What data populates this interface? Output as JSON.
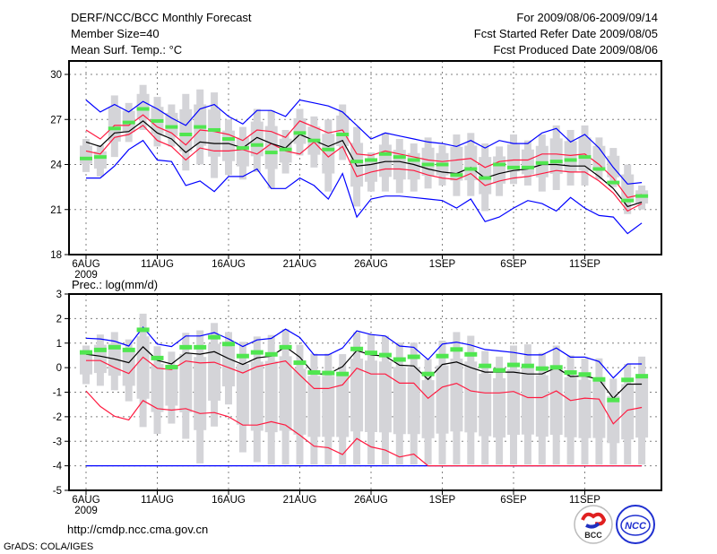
{
  "header": {
    "title": "DERF/NCC/BCC Monthly Forecast",
    "member_size": "Member Size=40",
    "variable": "Mean Surf. Temp.: °C",
    "period": "For 2009/08/06-2009/09/14",
    "started": "Fcst Started Refer Date 2009/08/05",
    "produced": "Fcst Produced Date 2009/08/06"
  },
  "footer": {
    "url": "http://cmdp.ncc.cma.gov.cn",
    "credit": "GrADS: COLA/IGES",
    "logo_bcc": "BCC",
    "logo_ncc": "NCC"
  },
  "colors": {
    "max_min": "#0000ff",
    "spread": "#ff1a40",
    "mean": "#000000",
    "green": "#50e650",
    "bar": "#d4d4d8",
    "grid": "#808080"
  },
  "chart_data": [
    {
      "type": "line",
      "title": "Mean Surf. Temp.: °C",
      "ylim": [
        18,
        31
      ],
      "yticks": [
        18,
        21,
        24,
        27,
        30
      ],
      "xtick_days": [
        0,
        5,
        10,
        15,
        20,
        25,
        30,
        35
      ],
      "xtick_labels": [
        "6AUG",
        "11AUG",
        "16AUG",
        "21AUG",
        "26AUG",
        "1SEP",
        "6SEP",
        "11SEP"
      ],
      "year_label": "2009",
      "grid": true,
      "series": [
        {
          "name": "whisker_min",
          "values": [
            23.5,
            23.2,
            24.5,
            25.5,
            26.3,
            25.2,
            25.2,
            23.6,
            24.0,
            23.1,
            23.3,
            23.0,
            23.5,
            22.4,
            23.4,
            24.6,
            23.8,
            22.2,
            24.3,
            21.2,
            22.2,
            22.2,
            22.1,
            22.2,
            22.4,
            22.6,
            21.9,
            21.9,
            20.9,
            21.9,
            22.7,
            22.6,
            22.2,
            22.3,
            22.6,
            22.6,
            23.0,
            22.5,
            20.7,
            21.0
          ]
        },
        {
          "name": "whisker_max",
          "values": [
            25.7,
            25.3,
            28.6,
            28.1,
            29.3,
            28.5,
            28.0,
            28.7,
            29.0,
            28.8,
            27.0,
            26.5,
            27.7,
            27.6,
            26.3,
            27.7,
            27.2,
            27.0,
            28.0,
            26.5,
            24.8,
            26.1,
            25.7,
            25.4,
            25.8,
            25.3,
            26.0,
            26.1,
            25.4,
            25.2,
            26.0,
            25.6,
            26.0,
            26.6,
            26.3,
            26.6,
            25.8,
            25.1,
            24.0,
            22.6
          ]
        },
        {
          "name": "max",
          "values": [
            28.3,
            27.5,
            28.0,
            27.5,
            28.2,
            27.7,
            27.1,
            26.6,
            27.7,
            28.0,
            27.2,
            26.7,
            27.6,
            27.6,
            27.2,
            28.3,
            28.1,
            27.9,
            27.5,
            26.6,
            25.7,
            26.1,
            25.9,
            25.7,
            25.5,
            25.4,
            25.2,
            25.6,
            25.1,
            25.6,
            25.4,
            25.4,
            26.1,
            26.4,
            25.5,
            26.0,
            25.1,
            23.8,
            22.7,
            22.8
          ]
        },
        {
          "name": "upper",
          "values": [
            26.3,
            25.7,
            26.6,
            26.6,
            27.3,
            26.5,
            26.1,
            25.3,
            26.3,
            26.2,
            26.0,
            25.6,
            26.3,
            26.2,
            25.8,
            26.9,
            26.5,
            26.1,
            26.3,
            24.7,
            24.6,
            24.9,
            24.7,
            24.5,
            24.3,
            24.2,
            24.3,
            24.4,
            23.8,
            24.2,
            24.3,
            24.3,
            24.7,
            24.7,
            24.6,
            24.7,
            24.0,
            23.1,
            21.8,
            22.0
          ]
        },
        {
          "name": "mean",
          "values": [
            25.5,
            25.2,
            26.1,
            26.2,
            26.9,
            26.1,
            25.7,
            24.8,
            25.5,
            25.4,
            25.4,
            25.1,
            25.8,
            25.4,
            25.1,
            26.0,
            25.6,
            25.2,
            25.6,
            23.9,
            24.0,
            24.2,
            24.2,
            24.0,
            23.7,
            23.5,
            23.4,
            23.8,
            23.1,
            23.4,
            23.6,
            23.7,
            24.0,
            24.0,
            23.9,
            23.9,
            23.2,
            22.4,
            21.2,
            21.5
          ]
        },
        {
          "name": "lower",
          "values": [
            24.9,
            24.7,
            25.8,
            26.0,
            26.6,
            25.6,
            25.2,
            24.3,
            25.1,
            24.9,
            24.9,
            25.0,
            24.7,
            25.4,
            24.9,
            24.7,
            25.5,
            24.5,
            25.2,
            23.2,
            23.5,
            23.7,
            23.7,
            23.6,
            23.3,
            23.1,
            23.0,
            23.4,
            22.6,
            22.9,
            23.1,
            23.2,
            23.4,
            23.6,
            23.5,
            23.5,
            22.9,
            22.1,
            20.9,
            21.4
          ]
        },
        {
          "name": "min",
          "values": [
            23.1,
            23.1,
            23.9,
            25.0,
            25.6,
            24.3,
            24.2,
            22.6,
            22.9,
            22.2,
            23.2,
            23.2,
            23.7,
            22.4,
            22.4,
            23.1,
            22.6,
            21.7,
            23.4,
            20.5,
            21.7,
            21.9,
            21.9,
            21.8,
            21.7,
            21.6,
            21.1,
            21.7,
            20.2,
            20.5,
            21.1,
            21.6,
            21.4,
            20.9,
            21.8,
            21.1,
            20.6,
            20.5,
            19.4,
            20.1
          ]
        },
        {
          "name": "green",
          "values": [
            24.4,
            24.5,
            26.4,
            26.8,
            27.7,
            26.9,
            26.5,
            26.0,
            26.5,
            26.3,
            25.7,
            25.1,
            25.3,
            24.8,
            25.0,
            26.1,
            25.6,
            25.0,
            26.0,
            24.2,
            24.3,
            24.7,
            24.5,
            24.3,
            24.0,
            24.0,
            23.3,
            23.7,
            23.1,
            24.0,
            23.8,
            23.8,
            24.1,
            24.2,
            24.3,
            24.5,
            23.7,
            22.8,
            21.6,
            21.9
          ]
        }
      ]
    },
    {
      "type": "line",
      "title": "Prec.: log(mm/d)",
      "ylim": [
        -5,
        3
      ],
      "yticks": [
        -5,
        -4,
        -3,
        -2,
        -1,
        0,
        1,
        2,
        3
      ],
      "xtick_days": [
        0,
        5,
        10,
        15,
        20,
        25,
        30,
        35
      ],
      "xtick_labels": [
        "6AUG",
        "11AUG",
        "16AUG",
        "21AUG",
        "26AUG",
        "1SEP",
        "6SEP",
        "11SEP"
      ],
      "year_label": "2009",
      "grid": true,
      "series": [
        {
          "name": "whisker_min",
          "values": [
            -0.67,
            -0.74,
            -0.92,
            -1.37,
            -2.42,
            -2.7,
            -2.28,
            -2.9,
            -3.9,
            -2.4,
            -1.5,
            -3.45,
            -3.85,
            -3.95,
            -3.95,
            -3.95,
            -3.95,
            -3.95,
            -3.95,
            -3.95,
            -3.95,
            -3.95,
            -3.95,
            -3.95,
            -3.95,
            -3.95,
            -3.95,
            -3.95,
            -3.95,
            -3.95,
            -3.95,
            -3.95,
            -3.95,
            -3.95,
            -3.95,
            -3.95,
            -3.95,
            -3.95,
            -3.95,
            -3.95
          ]
        },
        {
          "name": "whisker_max",
          "values": [
            0.9,
            1.35,
            1.45,
            1.15,
            2.2,
            0.87,
            0.65,
            1.42,
            1.52,
            1.82,
            1.45,
            1.05,
            1.27,
            1.33,
            1.57,
            0.93,
            0.57,
            0.57,
            0.55,
            1.45,
            1.35,
            1.3,
            1.02,
            1.02,
            0.35,
            1.1,
            1.45,
            1.3,
            0.68,
            0.45,
            0.9,
            0.95,
            0.6,
            0.9,
            0.5,
            0.37,
            0.38,
            -0.45,
            0.15,
            0.45
          ]
        },
        {
          "name": "max",
          "values": [
            1.2,
            1.17,
            1.08,
            0.88,
            1.65,
            0.96,
            0.86,
            1.29,
            1.29,
            1.43,
            1.17,
            0.86,
            1.13,
            1.19,
            1.57,
            1.23,
            0.52,
            0.52,
            0.8,
            1.5,
            1.35,
            1.29,
            0.88,
            0.83,
            0.33,
            0.96,
            1.04,
            0.92,
            0.74,
            0.68,
            0.62,
            0.52,
            0.52,
            0.8,
            0.43,
            0.43,
            0.25,
            -0.42,
            0.15,
            0.15
          ]
        },
        {
          "name": "upper",
          "values": [
            0.29,
            0.29,
            0.0,
            -0.24,
            0.43,
            -0.02,
            -0.08,
            0.27,
            0.19,
            0.22,
            0.0,
            -0.22,
            0.04,
            0.16,
            0.27,
            -0.3,
            -0.85,
            -0.85,
            -0.7,
            -0.02,
            -0.26,
            -0.26,
            -0.63,
            -0.63,
            -1.25,
            -0.79,
            -0.64,
            -0.95,
            -1.03,
            -1.03,
            -0.97,
            -1.22,
            -1.22,
            -0.95,
            -1.34,
            -1.24,
            -1.28,
            -2.29,
            -1.73,
            -1.62
          ]
        },
        {
          "name": "mean",
          "values": [
            0.55,
            0.47,
            0.35,
            0.2,
            0.85,
            0.3,
            0.15,
            0.6,
            0.55,
            0.65,
            0.37,
            0.13,
            0.4,
            0.47,
            0.85,
            0.43,
            -0.26,
            -0.26,
            0.04,
            0.7,
            0.52,
            0.47,
            0.1,
            0.07,
            -0.48,
            0.13,
            0.23,
            0.0,
            -0.18,
            -0.18,
            -0.18,
            -0.26,
            -0.26,
            0.0,
            -0.36,
            -0.34,
            -0.48,
            -1.25,
            -0.67,
            -0.67
          ]
        },
        {
          "name": "lower",
          "values": [
            -0.95,
            -1.58,
            -1.98,
            -2.13,
            -1.34,
            -1.67,
            -1.73,
            -1.67,
            -1.87,
            -1.83,
            -2.0,
            -2.34,
            -2.34,
            -2.2,
            -2.34,
            -2.75,
            -3.2,
            -3.26,
            -3.54,
            -2.89,
            -3.23,
            -3.36,
            -3.64,
            -3.52,
            -4,
            -4,
            -4,
            -4,
            -4,
            -4,
            -4,
            -4,
            -4,
            -4,
            -4,
            -4,
            -4,
            -4,
            -4,
            -4
          ]
        },
        {
          "name": "min",
          "values": [
            -4,
            -4,
            -4,
            -4,
            -4,
            -4,
            -4,
            -4,
            -4,
            -4,
            -4,
            -4,
            -4,
            -4,
            -4,
            -4,
            -4,
            -4,
            -4,
            -4,
            -4,
            -4,
            -4,
            -4,
            -4,
            -4,
            -4,
            -4,
            -4,
            -4,
            -4,
            -4,
            -4,
            -4,
            -4,
            -4,
            -4,
            -4,
            -4,
            -4
          ]
        },
        {
          "name": "green",
          "values": [
            0.64,
            0.74,
            0.85,
            0.74,
            1.56,
            0.41,
            0.04,
            0.85,
            0.85,
            1.26,
            0.98,
            0.49,
            0.64,
            0.56,
            0.85,
            0.22,
            -0.18,
            -0.2,
            -0.24,
            0.78,
            0.62,
            0.53,
            0.35,
            0.46,
            -0.24,
            0.49,
            0.76,
            0.56,
            0.09,
            -0.09,
            0.13,
            0.09,
            -0.02,
            0.03,
            -0.18,
            -0.26,
            -0.46,
            -1.3,
            -0.48,
            -0.33
          ]
        }
      ]
    }
  ]
}
